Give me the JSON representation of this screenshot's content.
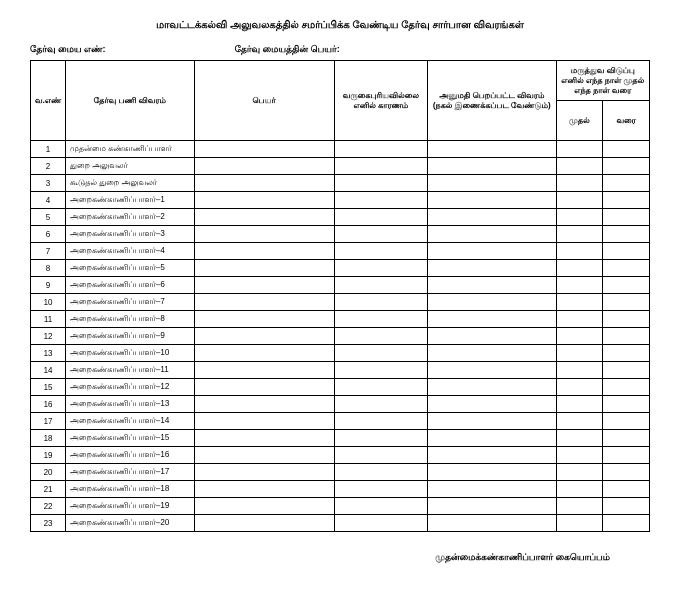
{
  "title": "மாவட்டக்கல்வி அலுவலகத்தில் சமர்ப்பிக்க வேண்டிய தேர்வு சார்பான விவரங்கள்",
  "header": {
    "left": "தேர்வு மைய எண்:",
    "right": "தேர்வு மையத்தின் பெயர்:"
  },
  "columns": {
    "sno": "வ.எண்",
    "desc": "தேர்வு பணி விவரம்",
    "name": "பெயர்",
    "reason": "வருகைபுரியவில்லை எனில் காரணம்",
    "approval": "அனுமதி பெறப்பட்ட விவரம் (நகல் இணைக்கப்பட வேண்டும்)",
    "leave": "மருத்துவ விடுப்பு எனில் எந்த நாள் முதல் எந்த நாள் வரை",
    "from": "முதல்",
    "to": "வரை"
  },
  "rows": [
    {
      "sno": "1",
      "desc": "முதன்மை கண்காணிப்பாளர்"
    },
    {
      "sno": "2",
      "desc": "துறை அலுவலர்"
    },
    {
      "sno": "3",
      "desc": "கூடுதல் துறை அலுவலர்"
    },
    {
      "sno": "4",
      "desc": "அறைகண்காணிப்பாளர்–1"
    },
    {
      "sno": "5",
      "desc": "அறைகண்காணிப்பாளர்–2"
    },
    {
      "sno": "6",
      "desc": "அறைகண்காணிப்பாளர்–3"
    },
    {
      "sno": "7",
      "desc": "அறைகண்காணிப்பாளர்–4"
    },
    {
      "sno": "8",
      "desc": "அறைகண்காணிப்பாளர்–5"
    },
    {
      "sno": "9",
      "desc": "அறைகண்காணிப்பாளர்–6"
    },
    {
      "sno": "10",
      "desc": "அறைகண்காணிப்பாளர்–7"
    },
    {
      "sno": "11",
      "desc": "அறைகண்காணிப்பாளர்–8"
    },
    {
      "sno": "12",
      "desc": "அறைகண்காணிப்பாளர்–9"
    },
    {
      "sno": "13",
      "desc": "அறைகண்காணிப்பாளர்–10"
    },
    {
      "sno": "14",
      "desc": "அறைகண்காணிப்பாளர்–11"
    },
    {
      "sno": "15",
      "desc": "அறைகண்காணிப்பாளர்–12"
    },
    {
      "sno": "16",
      "desc": "அறைகண்காணிப்பாளர்–13"
    },
    {
      "sno": "17",
      "desc": "அறைகண்காணிப்பாளர்–14"
    },
    {
      "sno": "18",
      "desc": "அறைகண்காணிப்பாளர்–15"
    },
    {
      "sno": "19",
      "desc": "அறைகண்காணிப்பாளர்–16"
    },
    {
      "sno": "20",
      "desc": "அறைகண்காணிப்பாளர்–17"
    },
    {
      "sno": "21",
      "desc": "அறைகண்காணிப்பாளர்–18"
    },
    {
      "sno": "22",
      "desc": "அறைகண்காணிப்பாளர்–19"
    },
    {
      "sno": "23",
      "desc": "அறைகண்காணிப்பாளர்–20"
    }
  ],
  "footer": "முதன்மைக்கண்காணிப்பாளர் கையொப்பம்"
}
